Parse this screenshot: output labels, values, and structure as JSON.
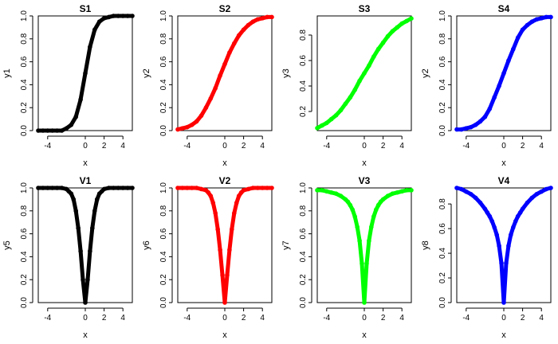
{
  "chart_data": [
    {
      "type": "scatter",
      "title": "S1",
      "xlabel": "x",
      "ylabel": "y1",
      "color": "#000000",
      "xlim": [
        -5,
        5
      ],
      "ylim": [
        0,
        1
      ],
      "xticks": [
        -4,
        0,
        2,
        4
      ],
      "yticks": [
        0.0,
        0.2,
        0.4,
        0.6,
        0.8,
        1.0
      ],
      "ytick_labels": [
        "0.0",
        "0.2",
        "0.4",
        "0.6",
        "0.8",
        "1.0"
      ],
      "series": [
        {
          "x": [
            -5,
            -4.5,
            -4,
            -3.5,
            -3,
            -2.5,
            -2,
            -1.5,
            -1,
            -0.5,
            0,
            0.5,
            1,
            1.5,
            2,
            2.5,
            3,
            3.5,
            4,
            4.5,
            5
          ],
          "y": [
            0.0,
            0.0,
            0.0,
            0.0,
            0.0,
            0.0,
            0.02,
            0.05,
            0.12,
            0.27,
            0.5,
            0.73,
            0.88,
            0.95,
            0.98,
            0.99,
            1.0,
            1.0,
            1.0,
            1.0,
            1.0
          ]
        }
      ]
    },
    {
      "type": "scatter",
      "title": "S2",
      "xlabel": "x",
      "ylabel": "y2",
      "color": "#ff0000",
      "xlim": [
        -5,
        5
      ],
      "ylim": [
        0,
        1
      ],
      "xticks": [
        -4,
        0,
        2,
        4
      ],
      "yticks": [
        0.0,
        0.2,
        0.4,
        0.6,
        0.8,
        1.0
      ],
      "ytick_labels": [
        "0.0",
        "0.2",
        "0.4",
        "0.6",
        "0.8",
        "1.0"
      ],
      "series": [
        {
          "x": [
            -5,
            -4.5,
            -4,
            -3.5,
            -3,
            -2.5,
            -2,
            -1.5,
            -1,
            -0.5,
            0,
            0.5,
            1,
            1.5,
            2,
            2.5,
            3,
            3.5,
            4,
            4.5,
            5
          ],
          "y": [
            0.01,
            0.02,
            0.03,
            0.05,
            0.08,
            0.13,
            0.2,
            0.28,
            0.37,
            0.48,
            0.58,
            0.68,
            0.76,
            0.83,
            0.88,
            0.92,
            0.95,
            0.97,
            0.98,
            0.99,
            0.99
          ]
        }
      ]
    },
    {
      "type": "scatter",
      "title": "S3",
      "xlabel": "x",
      "ylabel": "y3",
      "color": "#00ff00",
      "xlim": [
        -5,
        5
      ],
      "ylim": [
        0.05,
        0.95
      ],
      "xticks": [
        -4,
        0,
        2,
        4
      ],
      "yticks": [
        0.2,
        0.4,
        0.6,
        0.8
      ],
      "ytick_labels": [
        "0.2",
        "0.4",
        "0.6",
        "0.8"
      ],
      "series": [
        {
          "x": [
            -5,
            -4.5,
            -4,
            -3.5,
            -3,
            -2.5,
            -2,
            -1.5,
            -1,
            -0.5,
            0,
            0.5,
            1,
            1.5,
            2,
            2.5,
            3,
            3.5,
            4,
            4.5,
            5
          ],
          "y": [
            0.07,
            0.09,
            0.11,
            0.14,
            0.17,
            0.21,
            0.26,
            0.31,
            0.37,
            0.44,
            0.5,
            0.56,
            0.63,
            0.69,
            0.74,
            0.79,
            0.83,
            0.86,
            0.89,
            0.91,
            0.93
          ]
        }
      ]
    },
    {
      "type": "scatter",
      "title": "S4",
      "xlabel": "x",
      "ylabel": "y2",
      "color": "#0000ff",
      "xlim": [
        -5,
        5
      ],
      "ylim": [
        0,
        1
      ],
      "xticks": [
        -4,
        0,
        2,
        4
      ],
      "yticks": [
        0.0,
        0.2,
        0.4,
        0.6,
        0.8,
        1.0
      ],
      "ytick_labels": [
        "0.0",
        "0.2",
        "0.4",
        "0.6",
        "0.8",
        "1.0"
      ],
      "series": [
        {
          "x": [
            -5,
            -4.5,
            -4,
            -3.5,
            -3,
            -2.5,
            -2,
            -1.5,
            -1,
            -0.5,
            0,
            0.5,
            1,
            1.5,
            2,
            2.5,
            3,
            3.5,
            4,
            4.5,
            5
          ],
          "y": [
            0.01,
            0.01,
            0.02,
            0.03,
            0.05,
            0.08,
            0.12,
            0.19,
            0.29,
            0.39,
            0.5,
            0.61,
            0.71,
            0.81,
            0.88,
            0.92,
            0.95,
            0.97,
            0.98,
            0.99,
            0.99
          ]
        }
      ]
    },
    {
      "type": "scatter",
      "title": "V1",
      "xlabel": "x",
      "ylabel": "y5",
      "color": "#000000",
      "xlim": [
        -5,
        5
      ],
      "ylim": [
        0,
        1
      ],
      "xticks": [
        -4,
        0,
        2,
        4
      ],
      "yticks": [
        0.0,
        0.2,
        0.4,
        0.6,
        0.8,
        1.0
      ],
      "ytick_labels": [
        "0.0",
        "0.2",
        "0.4",
        "0.6",
        "0.8",
        "1.0"
      ],
      "series": [
        {
          "x": [
            -5,
            -4.5,
            -4,
            -3.5,
            -3,
            -2.5,
            -2,
            -1.75,
            -1.5,
            -1.25,
            -1,
            -0.75,
            -0.5,
            -0.25,
            0,
            0.25,
            0.5,
            0.75,
            1,
            1.25,
            1.5,
            1.75,
            2,
            2.5,
            3,
            3.5,
            4,
            4.5,
            5
          ],
          "y": [
            1.0,
            1.0,
            1.0,
            1.0,
            1.0,
            1.0,
            0.99,
            0.97,
            0.95,
            0.9,
            0.8,
            0.65,
            0.45,
            0.2,
            0.0,
            0.2,
            0.45,
            0.65,
            0.8,
            0.9,
            0.95,
            0.97,
            0.99,
            1.0,
            1.0,
            1.0,
            1.0,
            1.0,
            1.0
          ]
        }
      ]
    },
    {
      "type": "scatter",
      "title": "V2",
      "xlabel": "x",
      "ylabel": "y6",
      "color": "#ff0000",
      "xlim": [
        -5,
        5
      ],
      "ylim": [
        0,
        1
      ],
      "xticks": [
        -4,
        0,
        2,
        4
      ],
      "yticks": [
        0.0,
        0.2,
        0.4,
        0.6,
        0.8,
        1.0
      ],
      "ytick_labels": [
        "0.0",
        "0.2",
        "0.4",
        "0.6",
        "0.8",
        "1.0"
      ],
      "series": [
        {
          "x": [
            -5,
            -4.5,
            -4,
            -3.5,
            -3,
            -2.5,
            -2,
            -1.75,
            -1.5,
            -1.25,
            -1,
            -0.75,
            -0.5,
            -0.25,
            0,
            0.25,
            0.5,
            0.75,
            1,
            1.25,
            1.5,
            1.75,
            2,
            2.5,
            3,
            3.5,
            4,
            4.5,
            5
          ],
          "y": [
            1.0,
            1.0,
            1.0,
            1.0,
            1.0,
            0.99,
            0.98,
            0.96,
            0.93,
            0.87,
            0.78,
            0.64,
            0.46,
            0.24,
            0.0,
            0.24,
            0.46,
            0.64,
            0.78,
            0.87,
            0.93,
            0.96,
            0.98,
            0.99,
            1.0,
            1.0,
            1.0,
            1.0,
            1.0
          ]
        }
      ]
    },
    {
      "type": "scatter",
      "title": "V3",
      "xlabel": "x",
      "ylabel": "y7",
      "color": "#00ff00",
      "xlim": [
        -5,
        5
      ],
      "ylim": [
        0,
        1
      ],
      "xticks": [
        -4,
        0,
        2,
        4
      ],
      "yticks": [
        0.0,
        0.2,
        0.4,
        0.6,
        0.8,
        1.0
      ],
      "ytick_labels": [
        "0.0",
        "0.2",
        "0.4",
        "0.6",
        "0.8",
        "1.0"
      ],
      "series": [
        {
          "x": [
            -5,
            -4.5,
            -4,
            -3.5,
            -3,
            -2.5,
            -2,
            -1.75,
            -1.5,
            -1.25,
            -1,
            -0.75,
            -0.5,
            -0.25,
            0,
            0.25,
            0.5,
            0.75,
            1,
            1.25,
            1.5,
            1.75,
            2,
            2.5,
            3,
            3.5,
            4,
            4.5,
            5
          ],
          "y": [
            0.98,
            0.98,
            0.97,
            0.96,
            0.95,
            0.93,
            0.9,
            0.88,
            0.85,
            0.81,
            0.75,
            0.66,
            0.54,
            0.34,
            0.0,
            0.34,
            0.54,
            0.66,
            0.75,
            0.81,
            0.85,
            0.88,
            0.9,
            0.93,
            0.95,
            0.96,
            0.97,
            0.98,
            0.98
          ]
        }
      ]
    },
    {
      "type": "scatter",
      "title": "V4",
      "xlabel": "x",
      "ylabel": "y8",
      "color": "#0000ff",
      "xlim": [
        -5,
        5
      ],
      "ylim": [
        0,
        0.93
      ],
      "xticks": [
        -4,
        0,
        2,
        4
      ],
      "yticks": [
        0.0,
        0.2,
        0.4,
        0.6,
        0.8
      ],
      "ytick_labels": [
        "0.0",
        "0.2",
        "0.4",
        "0.6",
        "0.8"
      ],
      "series": [
        {
          "x": [
            -5,
            -4.5,
            -4,
            -3.5,
            -3,
            -2.5,
            -2,
            -1.75,
            -1.5,
            -1.25,
            -1,
            -0.75,
            -0.5,
            -0.25,
            0,
            0.25,
            0.5,
            0.75,
            1,
            1.25,
            1.5,
            1.75,
            2,
            2.5,
            3,
            3.5,
            4,
            4.5,
            5
          ],
          "y": [
            0.93,
            0.92,
            0.9,
            0.88,
            0.85,
            0.81,
            0.76,
            0.73,
            0.7,
            0.66,
            0.61,
            0.55,
            0.46,
            0.32,
            0.0,
            0.32,
            0.46,
            0.55,
            0.61,
            0.66,
            0.7,
            0.73,
            0.76,
            0.81,
            0.85,
            0.88,
            0.9,
            0.92,
            0.93
          ]
        }
      ]
    }
  ]
}
